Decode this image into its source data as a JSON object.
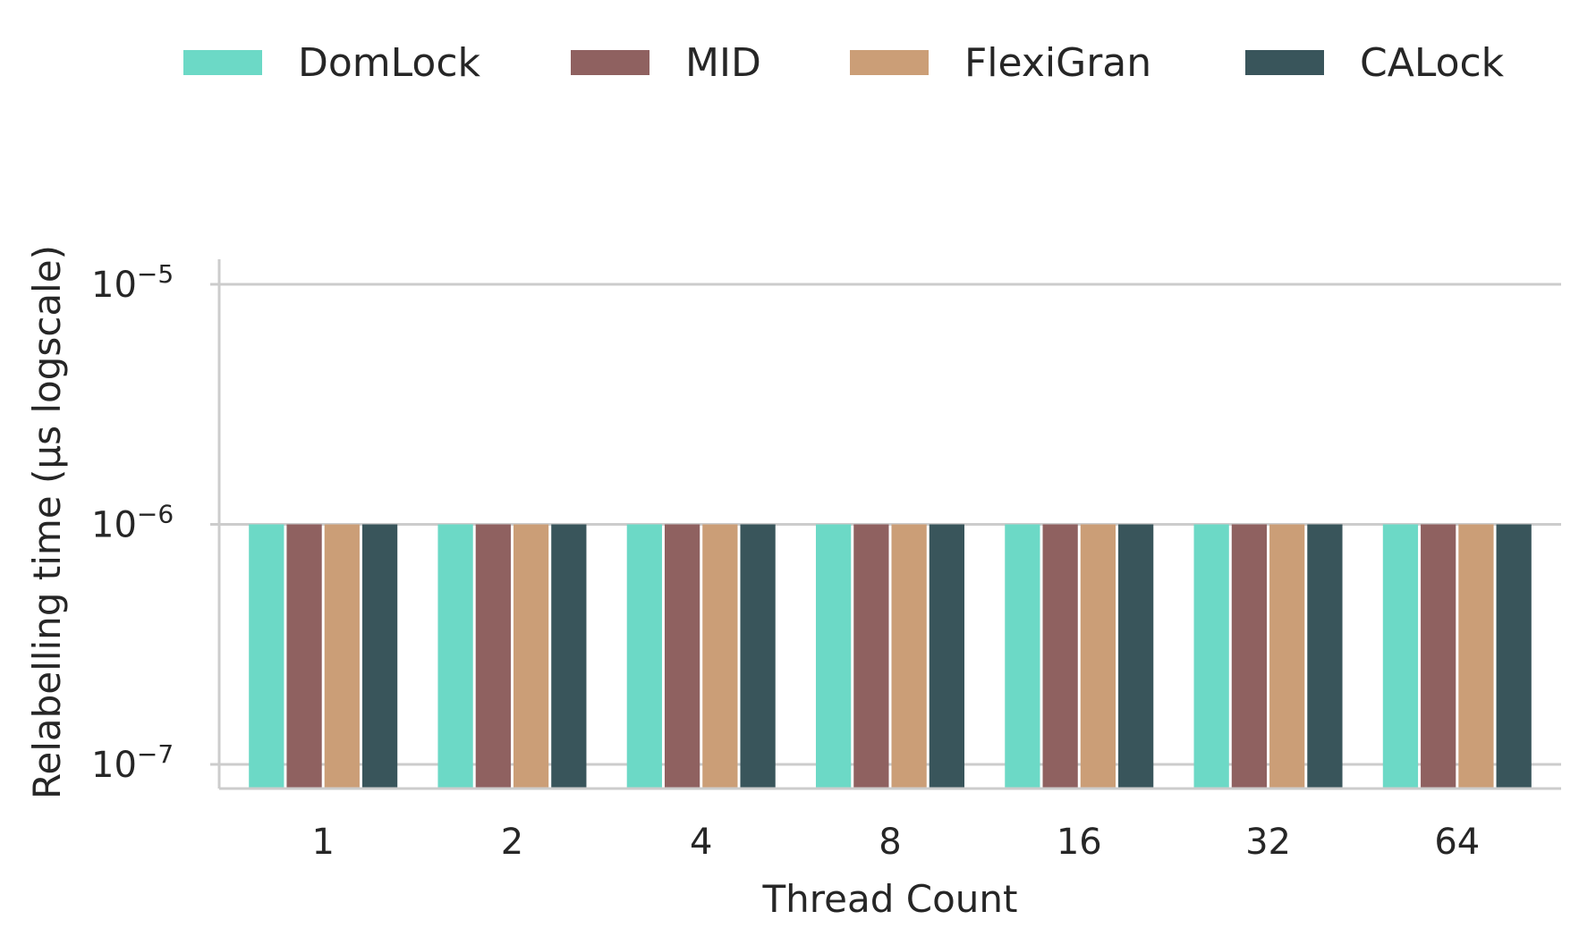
{
  "chart_data": {
    "type": "bar",
    "categories": [
      "1",
      "2",
      "4",
      "8",
      "16",
      "32",
      "64"
    ],
    "series": [
      {
        "name": "DomLock",
        "color": "#6cd9c6",
        "values": [
          1e-06,
          1e-06,
          1e-06,
          1e-06,
          1e-06,
          1e-06,
          1e-06
        ]
      },
      {
        "name": "MID",
        "color": "#8f6160",
        "values": [
          1e-06,
          1e-06,
          1e-06,
          1e-06,
          1e-06,
          1e-06,
          1e-06
        ]
      },
      {
        "name": "FlexiGran",
        "color": "#cb9e77",
        "values": [
          1e-06,
          1e-06,
          1e-06,
          1e-06,
          1e-06,
          1e-06,
          1e-06
        ]
      },
      {
        "name": "CALock",
        "color": "#39555b",
        "values": [
          1e-06,
          1e-06,
          1e-06,
          1e-06,
          1e-06,
          1e-06,
          1e-06
        ]
      }
    ],
    "xlabel": "Thread Count",
    "ylabel": "Relabelling time (μs logscale)",
    "yscale": "log",
    "ylim": [
      8e-08,
      1.3e-05
    ],
    "yticks": [
      {
        "value": 1e-07,
        "base": "10",
        "exp": "−7"
      },
      {
        "value": 1e-06,
        "base": "10",
        "exp": "−6"
      },
      {
        "value": 1e-05,
        "base": "10",
        "exp": "−5"
      }
    ],
    "grid": "horizontal",
    "legend_position": "top"
  }
}
